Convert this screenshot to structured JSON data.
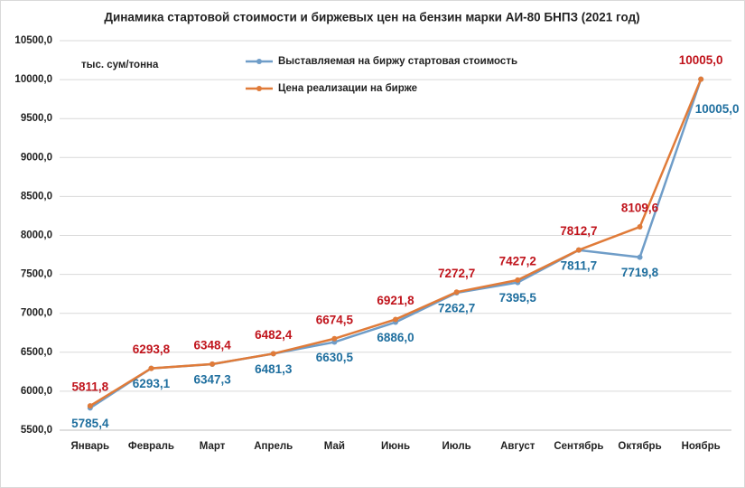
{
  "chart_data": {
    "type": "line",
    "title": "Динамика стартовой стоимости и биржевых цен на бензин марки АИ-80 БНПЗ (2021 год)",
    "y_label": "тыс. сум/тонна",
    "categories": [
      "Январь",
      "Февраль",
      "Март",
      "Апрель",
      "Май",
      "Июнь",
      "Июль",
      "Август",
      "Сентябрь",
      "Октябрь",
      "Ноябрь"
    ],
    "series": [
      {
        "name": "Выставляемая на биржу стартовая стоимость",
        "color": "#6f9dc8",
        "label_color": "#1f6f9f",
        "values": [
          5785.4,
          6293.1,
          6347.3,
          6481.3,
          6630.5,
          6886.0,
          7262.7,
          7395.5,
          7811.7,
          7719.8,
          10005.0
        ],
        "value_labels": [
          "5785,4",
          "6293,1",
          "6347,3",
          "6481,3",
          "6630,5",
          "6886,0",
          "7262,7",
          "7395,5",
          "7811,7",
          "7719,8",
          "10005,0"
        ]
      },
      {
        "name": "Цена реализации на бирже",
        "color": "#e07b39",
        "label_color": "#c0141c",
        "values": [
          5811.8,
          6293.8,
          6348.4,
          6482.4,
          6674.5,
          6921.8,
          7272.7,
          7427.2,
          7812.7,
          8109.6,
          10005.0
        ],
        "value_labels": [
          "5811,8",
          "6293,8",
          "6348,4",
          "6482,4",
          "6674,5",
          "6921,8",
          "7272,7",
          "7427,2",
          "7812,7",
          "8109,6",
          "10005,0"
        ]
      }
    ],
    "ylim": [
      5500,
      10500
    ],
    "yticks": [
      {
        "value": 5500,
        "label": "5500,0"
      },
      {
        "value": 6000,
        "label": "6000,0"
      },
      {
        "value": 6500,
        "label": "6500,0"
      },
      {
        "value": 7000,
        "label": "7000,0"
      },
      {
        "value": 7500,
        "label": "7500,0"
      },
      {
        "value": 8000,
        "label": "8000,0"
      },
      {
        "value": 8500,
        "label": "8500,0"
      },
      {
        "value": 9000,
        "label": "9000,0"
      },
      {
        "value": 9500,
        "label": "9500,0"
      },
      {
        "value": 10000,
        "label": "10000,0"
      },
      {
        "value": 10500,
        "label": "10500,0"
      }
    ],
    "grid": true
  }
}
